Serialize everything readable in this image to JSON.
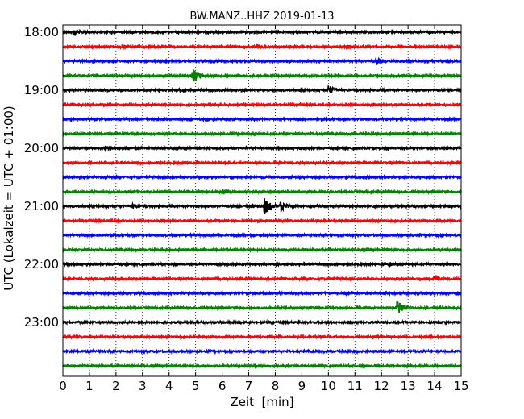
{
  "chart_data": {
    "type": "line",
    "title": "BW.MANZ..HHZ 2019-01-13",
    "xlabel": "Zeit  [min]",
    "ylabel": "UTC (Lokalzeit = UTC + 01:00)",
    "xlim": [
      0,
      15
    ],
    "x_ticks": [
      "0",
      "1",
      "2",
      "3",
      "4",
      "5",
      "6",
      "7",
      "8",
      "9",
      "10",
      "11",
      "12",
      "13",
      "14",
      "15"
    ],
    "y_ticks": [
      "18:00",
      "19:00",
      "20:00",
      "21:00",
      "22:00",
      "23:00"
    ],
    "grid": "dotted vertical at each minute",
    "colors": [
      "#000000",
      "#ff0000",
      "#0000ff",
      "#008000"
    ],
    "traces": [
      {
        "start": "18:00",
        "events": [
          {
            "t": 0.4,
            "amp": 0.25
          }
        ]
      },
      {
        "start": "18:15",
        "events": [
          {
            "t": 2.2,
            "amp": 0.2
          },
          {
            "t": 7.3,
            "amp": 0.2
          },
          {
            "t": 10.7,
            "amp": 0.2
          }
        ]
      },
      {
        "start": "18:30",
        "events": [
          {
            "t": 11.8,
            "amp": 0.3
          }
        ]
      },
      {
        "start": "18:45",
        "events": [
          {
            "t": 4.9,
            "amp": 0.5
          }
        ]
      },
      {
        "start": "19:00",
        "events": [
          {
            "t": 10.0,
            "amp": 0.35
          }
        ]
      },
      {
        "start": "19:15",
        "events": []
      },
      {
        "start": "19:30",
        "events": []
      },
      {
        "start": "19:45",
        "events": []
      },
      {
        "start": "20:00",
        "events": [
          {
            "t": 1.6,
            "amp": 0.2
          },
          {
            "t": 8.9,
            "amp": 0.15
          }
        ]
      },
      {
        "start": "20:15",
        "events": [
          {
            "t": 4.9,
            "amp": 0.15
          }
        ]
      },
      {
        "start": "20:30",
        "events": []
      },
      {
        "start": "20:45",
        "events": [
          {
            "t": 6.0,
            "amp": 0.2
          }
        ]
      },
      {
        "start": "21:00",
        "events": [
          {
            "t": 2.6,
            "amp": 0.2
          },
          {
            "t": 7.6,
            "amp": 0.6
          },
          {
            "t": 8.2,
            "amp": 0.4
          }
        ]
      },
      {
        "start": "21:15",
        "events": []
      },
      {
        "start": "21:30",
        "events": []
      },
      {
        "start": "21:45",
        "events": []
      },
      {
        "start": "22:00",
        "events": [
          {
            "t": 12.3,
            "amp": 0.2
          }
        ]
      },
      {
        "start": "22:15",
        "events": [
          {
            "t": 14.0,
            "amp": 0.3
          }
        ]
      },
      {
        "start": "22:30",
        "events": [
          {
            "t": 10.6,
            "amp": 0.15
          }
        ]
      },
      {
        "start": "22:45",
        "events": [
          {
            "t": 12.6,
            "amp": 0.6
          }
        ]
      },
      {
        "start": "23:00",
        "events": []
      },
      {
        "start": "23:15",
        "events": []
      },
      {
        "start": "23:30",
        "events": []
      },
      {
        "start": "23:45",
        "events": []
      }
    ]
  }
}
